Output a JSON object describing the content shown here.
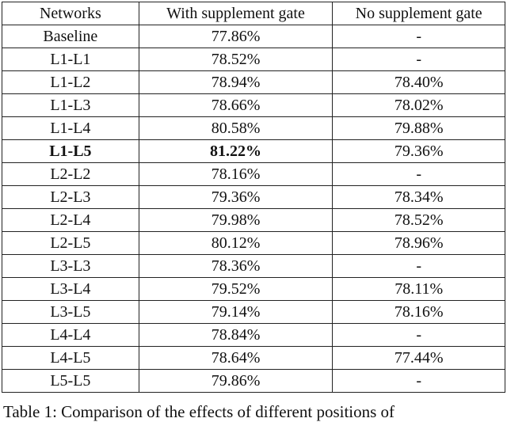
{
  "table": {
    "header": [
      "Networks",
      "With supplement gate",
      "No supplement gate"
    ],
    "rows": [
      [
        "Baseline",
        "77.86%",
        "-"
      ],
      [
        "L1-L1",
        "78.52%",
        "-"
      ],
      [
        "L1-L2",
        "78.94%",
        "78.40%"
      ],
      [
        "L1-L3",
        "78.66%",
        "78.02%"
      ],
      [
        "L1-L4",
        "80.58%",
        "79.88%"
      ],
      [
        "L1-L5",
        "81.22%",
        "79.36%"
      ],
      [
        "L2-L2",
        "78.16%",
        "-"
      ],
      [
        "L2-L3",
        "79.36%",
        "78.34%"
      ],
      [
        "L2-L4",
        "79.98%",
        "78.52%"
      ],
      [
        "L2-L5",
        "80.12%",
        "78.96%"
      ],
      [
        "L3-L3",
        "78.36%",
        "-"
      ],
      [
        "L3-L4",
        "79.52%",
        "78.11%"
      ],
      [
        "L3-L5",
        "79.14%",
        "78.16%"
      ],
      [
        "L4-L4",
        "78.84%",
        "-"
      ],
      [
        "L4-L5",
        "78.64%",
        "77.44%"
      ],
      [
        "L5-L5",
        "79.86%",
        "-"
      ]
    ]
  },
  "caption": "Table 1: Comparison of the effects of different positions of"
}
